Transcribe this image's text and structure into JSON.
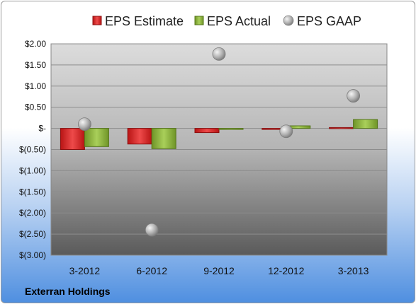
{
  "company": "Exterran Holdings",
  "colors": {
    "estimate": "#d42a2a",
    "actual": "#86ad3a",
    "gaap": "#a8a8a8"
  },
  "chart_data": {
    "type": "bar",
    "title": "",
    "xlabel": "",
    "ylabel": "",
    "categories": [
      "3-2012",
      "6-2012",
      "9-2012",
      "12-2012",
      "3-2013"
    ],
    "ylim": [
      -3.0,
      2.0
    ],
    "yticks": [
      2.0,
      1.5,
      1.0,
      0.5,
      0.0,
      -0.5,
      -1.0,
      -1.5,
      -2.0,
      -2.5,
      -3.0
    ],
    "ytick_labels": [
      "$2.00",
      "$1.50",
      "$1.00",
      "$0.50",
      "$-",
      "$(0.50)",
      "$(1.00)",
      "$(1.50)",
      "$(2.00)",
      "$(2.50)",
      "$(3.00)"
    ],
    "grid": true,
    "legend_position": "top",
    "series": [
      {
        "name": "EPS Estimate",
        "type": "bar",
        "values": [
          -0.5,
          -0.37,
          -0.1,
          -0.02,
          0.02
        ]
      },
      {
        "name": "EPS Actual",
        "type": "bar",
        "values": [
          -0.43,
          -0.48,
          -0.02,
          0.06,
          0.21
        ]
      },
      {
        "name": "EPS GAAP",
        "type": "scatter",
        "values": [
          0.1,
          -2.4,
          1.76,
          -0.07,
          0.77
        ]
      }
    ]
  }
}
